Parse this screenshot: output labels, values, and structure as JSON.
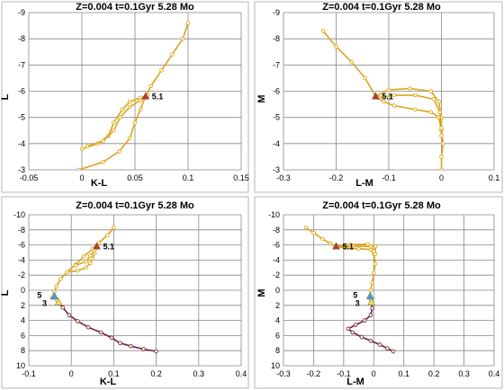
{
  "chart_data": [
    {
      "type": "line",
      "title": "Z=0.004   t=0.1Gyr  5.28 Mo",
      "xlabel": "K-L",
      "ylabel": "L",
      "xlim": [
        -0.05,
        0.15
      ],
      "ylim": [
        -3,
        -9
      ],
      "y_inverted": true,
      "xticks": [
        "-0.05",
        "0",
        "0.05",
        "0.1",
        "0.15"
      ],
      "yticks": [
        "-3",
        "-4",
        "-5",
        "-6",
        "-7",
        "-8",
        "-9"
      ],
      "series": [
        {
          "color": "#d9a520",
          "marker": "o",
          "points": [
            [
              -0.003,
              -3.0
            ],
            [
              0.02,
              -3.3
            ],
            [
              0.035,
              -3.7
            ],
            [
              0.045,
              -4.2
            ],
            [
              0.05,
              -4.8
            ],
            [
              0.055,
              -5.3
            ],
            [
              0.06,
              -5.8
            ],
            [
              0.065,
              -6.2
            ],
            [
              0.075,
              -6.8
            ],
            [
              0.085,
              -7.4
            ],
            [
              0.095,
              -8.0
            ],
            [
              0.1,
              -8.6
            ]
          ]
        },
        {
          "color": "#d9a520",
          "marker": "o",
          "points": [
            [
              0.0,
              -3.8
            ],
            [
              0.015,
              -4.0
            ],
            [
              0.025,
              -4.3
            ],
            [
              0.03,
              -4.8
            ],
            [
              0.038,
              -5.3
            ],
            [
              0.045,
              -5.6
            ],
            [
              0.055,
              -5.75
            ],
            [
              0.06,
              -5.8
            ]
          ]
        },
        {
          "color": "#d9a520",
          "marker": "o",
          "points": [
            [
              0.005,
              -3.9
            ],
            [
              0.02,
              -4.1
            ],
            [
              0.03,
              -4.5
            ],
            [
              0.036,
              -5.0
            ],
            [
              0.045,
              -5.4
            ],
            [
              0.055,
              -5.65
            ],
            [
              0.062,
              -5.85
            ]
          ]
        }
      ],
      "markers": [
        {
          "label": "5.1",
          "x": 0.06,
          "y": -5.8,
          "color": "#c0392b",
          "shape": "triangle"
        }
      ]
    },
    {
      "type": "line",
      "title": "Z=0.004   t=0.1Gyr  5.28 Mo",
      "xlabel": "L-M",
      "ylabel": "M",
      "xlim": [
        -0.3,
        0.1
      ],
      "ylim": [
        -3,
        -9
      ],
      "y_inverted": true,
      "xticks": [
        "-0.3",
        "-0.2",
        "-0.1",
        "0",
        "0.1"
      ],
      "yticks": [
        "-3",
        "-4",
        "-5",
        "-6",
        "-7",
        "-8",
        "-9"
      ],
      "series": [
        {
          "color": "#d9a520",
          "marker": "o",
          "points": [
            [
              -0.225,
              -8.3
            ],
            [
              -0.2,
              -7.7
            ],
            [
              -0.17,
              -7.1
            ],
            [
              -0.145,
              -6.5
            ],
            [
              -0.125,
              -5.8
            ],
            [
              -0.11,
              -5.6
            ],
            [
              -0.09,
              -5.45
            ],
            [
              -0.05,
              -5.3
            ],
            [
              -0.02,
              -5.2
            ],
            [
              -0.005,
              -5.0
            ],
            [
              0.0,
              -4.5
            ],
            [
              0.003,
              -4.0
            ],
            [
              0.0,
              -3.5
            ],
            [
              0.0,
              -3.0
            ]
          ]
        },
        {
          "color": "#d9a520",
          "marker": "o",
          "points": [
            [
              -0.125,
              -5.8
            ],
            [
              -0.1,
              -6.05
            ],
            [
              -0.06,
              -6.1
            ],
            [
              -0.02,
              -6.0
            ],
            [
              -0.005,
              -5.6
            ],
            [
              0.0,
              -5.0
            ],
            [
              0.0,
              -4.3
            ]
          ]
        },
        {
          "color": "#d9a520",
          "marker": "o",
          "points": [
            [
              -0.12,
              -5.75
            ],
            [
              -0.09,
              -5.85
            ],
            [
              -0.05,
              -5.85
            ],
            [
              -0.015,
              -5.7
            ],
            [
              -0.003,
              -5.2
            ],
            [
              0.0,
              -4.6
            ]
          ]
        }
      ],
      "markers": [
        {
          "label": "5.1",
          "x": -0.125,
          "y": -5.8,
          "color": "#c0392b",
          "shape": "triangle"
        }
      ]
    },
    {
      "type": "line",
      "title": "Z=0.004   t=0.1Gyr  5.28 Mo",
      "xlabel": "K-L",
      "ylabel": "L",
      "xlim": [
        -0.1,
        0.4
      ],
      "ylim": [
        10,
        -10
      ],
      "y_inverted": true,
      "xticks": [
        "-0.1",
        "0",
        "0.1",
        "0.2",
        "0.3",
        "0.4"
      ],
      "yticks": [
        "-10",
        "-8",
        "-6",
        "-4",
        "-2",
        "0",
        "2",
        "4",
        "6",
        "8",
        "10"
      ],
      "series": [
        {
          "color": "#d9a520",
          "marker": "o",
          "points": [
            [
              -0.045,
              1.0
            ],
            [
              -0.04,
              0.2
            ],
            [
              -0.035,
              -0.5
            ],
            [
              -0.025,
              -1.5
            ],
            [
              -0.01,
              -2.4
            ],
            [
              0.01,
              -3.4
            ],
            [
              0.03,
              -4.5
            ],
            [
              0.05,
              -5.5
            ],
            [
              0.065,
              -6.3
            ],
            [
              0.085,
              -7.3
            ],
            [
              0.1,
              -8.3
            ]
          ]
        },
        {
          "color": "#d9a520",
          "marker": "o",
          "points": [
            [
              -0.01,
              -2.4
            ],
            [
              0.015,
              -2.6
            ],
            [
              0.035,
              -3.0
            ],
            [
              0.045,
              -3.6
            ],
            [
              0.05,
              -4.2
            ],
            [
              0.055,
              -4.9
            ],
            [
              0.06,
              -5.8
            ]
          ]
        },
        {
          "color": "#d9a520",
          "marker": "o",
          "points": [
            [
              0.01,
              -3.3
            ],
            [
              0.035,
              -3.8
            ],
            [
              0.045,
              -4.6
            ],
            [
              0.055,
              -5.3
            ],
            [
              0.06,
              -5.9
            ]
          ]
        },
        {
          "color": "#a06ac8",
          "marker": "o",
          "points": [
            [
              -0.04,
              0.8
            ],
            [
              -0.035,
              1.2
            ],
            [
              -0.03,
              1.6
            ]
          ]
        },
        {
          "color": "#6d2145",
          "marker": "o",
          "points": [
            [
              -0.03,
              1.6
            ],
            [
              -0.02,
              2.3
            ],
            [
              -0.005,
              3.3
            ],
            [
              0.015,
              4.1
            ],
            [
              0.04,
              4.9
            ],
            [
              0.07,
              5.6
            ],
            [
              0.095,
              6.3
            ],
            [
              0.115,
              7.0
            ],
            [
              0.14,
              7.4
            ],
            [
              0.17,
              7.8
            ],
            [
              0.2,
              8.1
            ]
          ]
        }
      ],
      "markers": [
        {
          "label": "5.1",
          "x": 0.06,
          "y": -5.8,
          "color": "#c0392b",
          "shape": "triangle"
        },
        {
          "label": "5",
          "x": -0.04,
          "y": 0.8,
          "color": "#4aa3c8",
          "shape": "triangle"
        },
        {
          "label": "3",
          "x": -0.03,
          "y": 1.6,
          "color": "#f2e04a",
          "shape": "triangle"
        }
      ]
    },
    {
      "type": "line",
      "title": "Z=0.004   t=0.1Gyr  5.28 Mo",
      "xlabel": "L-M",
      "ylabel": "M",
      "xlim": [
        -0.3,
        0.4
      ],
      "ylim": [
        10,
        -10
      ],
      "y_inverted": true,
      "xticks": [
        "-0.3",
        "-0.2",
        "-0.1",
        "0",
        "0.1",
        "0.2",
        "0.3",
        "0.4"
      ],
      "yticks": [
        "-10",
        "-8",
        "-6",
        "-4",
        "-2",
        "0",
        "2",
        "4",
        "6",
        "8",
        "10"
      ],
      "series": [
        {
          "color": "#d9a520",
          "marker": "o",
          "points": [
            [
              -0.225,
              -8.3
            ],
            [
              -0.2,
              -7.6
            ],
            [
              -0.17,
              -6.8
            ],
            [
              -0.145,
              -6.2
            ],
            [
              -0.125,
              -5.8
            ],
            [
              -0.09,
              -5.6
            ],
            [
              -0.05,
              -5.5
            ],
            [
              -0.01,
              -5.4
            ],
            [
              0.0,
              -4.8
            ],
            [
              0.005,
              -3.5
            ],
            [
              0.0,
              -2.3
            ],
            [
              -0.005,
              -1.0
            ],
            [
              -0.01,
              0.0
            ],
            [
              -0.012,
              0.8
            ]
          ]
        },
        {
          "color": "#d9a520",
          "marker": "o",
          "points": [
            [
              -0.125,
              -5.8
            ],
            [
              -0.08,
              -6.05
            ],
            [
              -0.02,
              -6.1
            ],
            [
              0.005,
              -5.8
            ],
            [
              0.005,
              -4.8
            ]
          ]
        },
        {
          "color": "#d9a520",
          "marker": "o",
          "points": [
            [
              -0.12,
              -5.75
            ],
            [
              -0.07,
              -5.85
            ],
            [
              -0.01,
              -5.8
            ],
            [
              0.0,
              -5.2
            ]
          ]
        },
        {
          "color": "#a06ac8",
          "marker": "o",
          "points": [
            [
              -0.012,
              0.8
            ],
            [
              -0.01,
              1.2
            ],
            [
              -0.008,
              1.6
            ]
          ]
        },
        {
          "color": "#6d2145",
          "marker": "o",
          "points": [
            [
              -0.008,
              1.6
            ],
            [
              -0.005,
              2.4
            ],
            [
              -0.01,
              3.3
            ],
            [
              -0.03,
              4.0
            ],
            [
              -0.06,
              4.6
            ],
            [
              -0.085,
              5.1
            ],
            [
              -0.07,
              5.6
            ],
            [
              -0.04,
              6.2
            ],
            [
              -0.01,
              6.7
            ],
            [
              0.02,
              7.2
            ],
            [
              0.045,
              7.7
            ],
            [
              0.065,
              8.1
            ]
          ]
        }
      ],
      "markers": [
        {
          "label": "5.1",
          "x": -0.125,
          "y": -5.8,
          "color": "#c0392b",
          "shape": "triangle"
        },
        {
          "label": "5",
          "x": -0.012,
          "y": 0.8,
          "color": "#4aa3c8",
          "shape": "triangle"
        },
        {
          "label": "3",
          "x": -0.008,
          "y": 1.6,
          "color": "#f2e04a",
          "shape": "triangle"
        }
      ]
    }
  ]
}
